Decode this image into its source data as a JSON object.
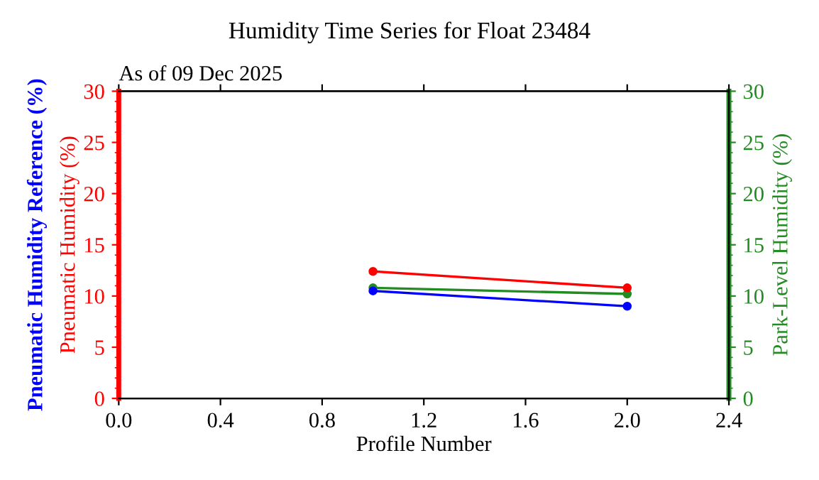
{
  "chart_data": {
    "type": "line",
    "title": "Humidity Time Series for Float 23484",
    "subtitle": "As of 09 Dec 2025",
    "xlabel": "Profile Number",
    "ylabel": "Pneumatic Humidity (%)",
    "y2label": "Park-Level Humidity (%)",
    "y3label": "Pneumatic Humidity Reference (%)",
    "x": [
      1,
      2
    ],
    "xlim": [
      0,
      2.4
    ],
    "xticks": [
      {
        "value": 0,
        "label": "0.0"
      },
      {
        "value": 0.4,
        "label": "0.4"
      },
      {
        "value": 0.8,
        "label": "0.8"
      },
      {
        "value": 1.2,
        "label": "1.2"
      },
      {
        "value": 1.6,
        "label": "1.6"
      },
      {
        "value": 2.0,
        "label": "2.0"
      },
      {
        "value": 2.4,
        "label": "2.4"
      }
    ],
    "ylim": [
      0,
      30
    ],
    "yticks": [
      0,
      5,
      10,
      15,
      20,
      25,
      30
    ],
    "y2lim": [
      0,
      30
    ],
    "y2ticks": [
      0,
      5,
      10,
      15,
      20,
      25,
      30
    ],
    "marker": "circle",
    "grid": false,
    "series": [
      {
        "color": "#ff0000",
        "values": [
          12.4,
          10.8
        ]
      },
      {
        "color": "#0000ff",
        "values": [
          10.5,
          9.0
        ]
      },
      {
        "color": "#228b22",
        "values": [
          10.8,
          10.2
        ],
        "axis": "y2"
      }
    ]
  }
}
